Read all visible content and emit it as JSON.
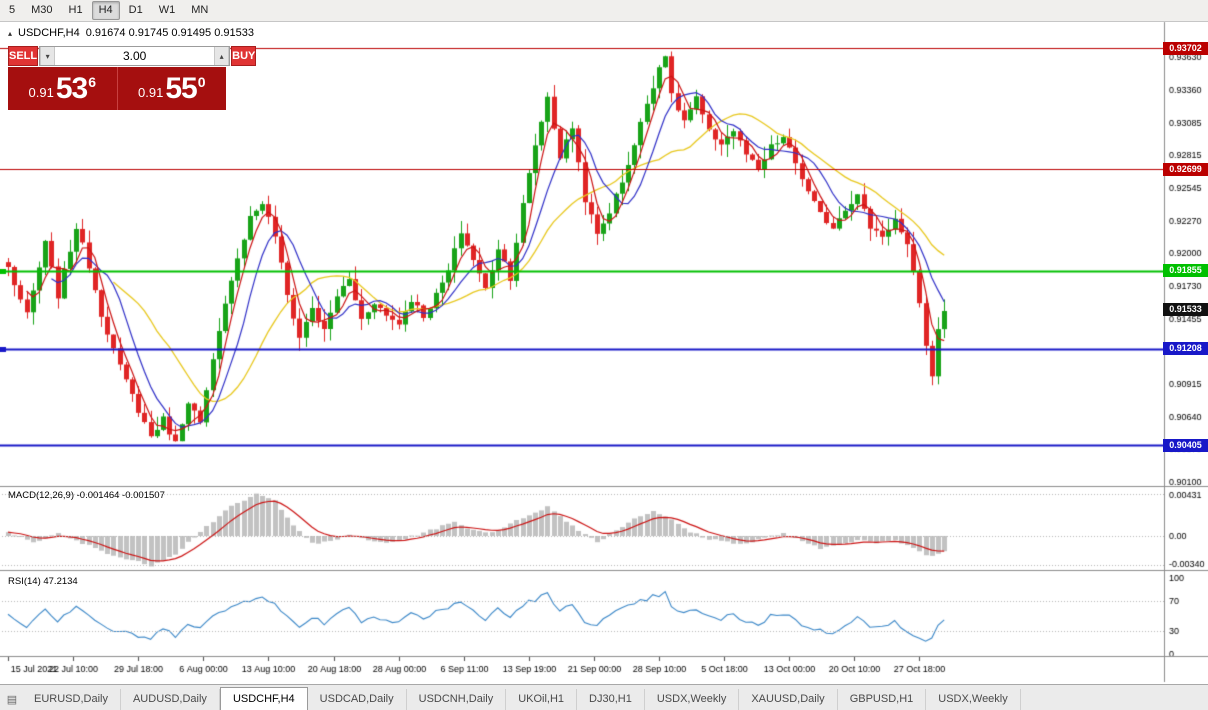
{
  "toolbar": {
    "timeframes": [
      "5",
      "M30",
      "H1",
      "H4",
      "D1",
      "W1",
      "MN"
    ],
    "active": "H4"
  },
  "chart_header": {
    "symbol": "USDCHF,H4",
    "ohlc": "0.91674 0.91745 0.91495 0.91533"
  },
  "trade_panel": {
    "sell_label": "SELL",
    "buy_label": "BUY",
    "volume": "3.00",
    "sell_price": {
      "prefix": "0.91",
      "big": "53",
      "sup": "6"
    },
    "buy_price": {
      "prefix": "0.91",
      "big": "55",
      "sup": "0"
    }
  },
  "indicators": {
    "macd": "MACD(12,26,9) -0.001464 -0.001507",
    "rsi": "RSI(14) 47.2134"
  },
  "icons": {
    "stepper_up": "▴",
    "stepper_down": "▾",
    "symbols_list": "▤",
    "header_marker": "▴"
  },
  "tabs": [
    "EURUSD,Daily",
    "AUDUSD,Daily",
    "USDCHF,H4",
    "USDCAD,Daily",
    "USDCNH,Daily",
    "UKOil,H1",
    "DJ30,H1",
    "USDX,Weekly",
    "XAUUSD,Daily",
    "GBPUSD,H1",
    "USDX,Weekly"
  ],
  "active_tab": "USDCHF,H4",
  "chart_data": {
    "type": "candlestick",
    "symbol": "USDCHF",
    "timeframe": "H4",
    "ylim": [
      0.90066,
      0.93888
    ],
    "price_axis_ticks": [
      "0.93630",
      "0.93360",
      "0.93085",
      "0.92815",
      "0.92545",
      "0.92270",
      "0.92000",
      "0.91730",
      "0.91455",
      "0.91185",
      "0.90915",
      "0.90640",
      "0.90370",
      "0.90100"
    ],
    "time_labels": [
      "15 Jul 2021",
      "22 Jul 10:00",
      "29 Jul 18:00",
      "6 Aug 00:00",
      "13 Aug 10:00",
      "20 Aug 18:00",
      "28 Aug 00:00",
      "6 Sep 11:00",
      "13 Sep 19:00",
      "21 Sep 00:00",
      "28 Sep 10:00",
      "5 Oct 18:00",
      "13 Oct 00:00",
      "20 Oct 10:00",
      "27 Oct 18:00"
    ],
    "horizontal_lines": [
      {
        "price": 0.93702,
        "label": "0.93702",
        "color": "#bb0000",
        "width": 1.2,
        "edge_marker": false
      },
      {
        "price": 0.92699,
        "label": "0.92699",
        "color": "#bb0000",
        "width": 1.2,
        "edge_marker": false
      },
      {
        "price": 0.91855,
        "label": "0.91855",
        "color": "#00c000",
        "width": 1.8,
        "edge_marker": true
      },
      {
        "price": 0.91208,
        "label": "0.91208",
        "color": "#1818c8",
        "width": 1.8,
        "edge_marker": true
      },
      {
        "price": 0.90405,
        "label": "0.90405",
        "color": "#1818c8",
        "width": 1.8,
        "edge_marker": false
      }
    ],
    "current_price": {
      "price": 0.91533,
      "label": "0.91533",
      "color": "#111111"
    },
    "candle_count": 152,
    "price_anchors": [
      [
        0,
        0.9188
      ],
      [
        3,
        0.9148
      ],
      [
        6,
        0.9208
      ],
      [
        8,
        0.9165
      ],
      [
        11,
        0.9222
      ],
      [
        13,
        0.919
      ],
      [
        15,
        0.915
      ],
      [
        18,
        0.9105
      ],
      [
        21,
        0.907
      ],
      [
        23,
        0.9048
      ],
      [
        25,
        0.9062
      ],
      [
        27,
        0.9042
      ],
      [
        29,
        0.9078
      ],
      [
        31,
        0.9058
      ],
      [
        33,
        0.911
      ],
      [
        36,
        0.918
      ],
      [
        39,
        0.923
      ],
      [
        41,
        0.9242
      ],
      [
        43,
        0.9215
      ],
      [
        45,
        0.9165
      ],
      [
        47,
        0.913
      ],
      [
        49,
        0.9155
      ],
      [
        51,
        0.9135
      ],
      [
        53,
        0.9165
      ],
      [
        55,
        0.9178
      ],
      [
        57,
        0.9145
      ],
      [
        59,
        0.916
      ],
      [
        61,
        0.9148
      ],
      [
        63,
        0.9142
      ],
      [
        65,
        0.9162
      ],
      [
        67,
        0.9148
      ],
      [
        69,
        0.9165
      ],
      [
        71,
        0.9185
      ],
      [
        73,
        0.9218
      ],
      [
        75,
        0.9195
      ],
      [
        77,
        0.917
      ],
      [
        79,
        0.9205
      ],
      [
        81,
        0.918
      ],
      [
        83,
        0.924
      ],
      [
        85,
        0.929
      ],
      [
        87,
        0.933
      ],
      [
        89,
        0.928
      ],
      [
        91,
        0.9305
      ],
      [
        93,
        0.9245
      ],
      [
        95,
        0.9215
      ],
      [
        97,
        0.9235
      ],
      [
        99,
        0.926
      ],
      [
        101,
        0.929
      ],
      [
        103,
        0.9325
      ],
      [
        105,
        0.9355
      ],
      [
        106,
        0.9366
      ],
      [
        107,
        0.933
      ],
      [
        109,
        0.931
      ],
      [
        111,
        0.9328
      ],
      [
        113,
        0.93
      ],
      [
        115,
        0.9292
      ],
      [
        117,
        0.9302
      ],
      [
        119,
        0.9282
      ],
      [
        121,
        0.9268
      ],
      [
        123,
        0.9288
      ],
      [
        125,
        0.9296
      ],
      [
        127,
        0.9275
      ],
      [
        129,
        0.925
      ],
      [
        131,
        0.9232
      ],
      [
        133,
        0.9222
      ],
      [
        135,
        0.9238
      ],
      [
        137,
        0.9248
      ],
      [
        139,
        0.9222
      ],
      [
        141,
        0.9215
      ],
      [
        143,
        0.9228
      ],
      [
        145,
        0.9205
      ],
      [
        147,
        0.916
      ],
      [
        148,
        0.9122
      ],
      [
        149,
        0.91
      ],
      [
        150,
        0.9135
      ],
      [
        151,
        0.9153
      ]
    ],
    "macd": {
      "axis": [
        "0.00431",
        "0.00",
        "-0.00340"
      ],
      "axis_values": [
        0.00431,
        0,
        -0.0034
      ],
      "anchors": [
        [
          0,
          0.0004
        ],
        [
          4,
          -0.0006
        ],
        [
          8,
          0.0002
        ],
        [
          13,
          -0.001
        ],
        [
          18,
          -0.0022
        ],
        [
          23,
          -0.003
        ],
        [
          27,
          -0.0018
        ],
        [
          31,
          0.0005
        ],
        [
          36,
          0.003
        ],
        [
          40,
          0.0043
        ],
        [
          43,
          0.0036
        ],
        [
          46,
          0.0012
        ],
        [
          49,
          -0.0008
        ],
        [
          52,
          -0.0006
        ],
        [
          55,
          0.0002
        ],
        [
          58,
          -0.0005
        ],
        [
          61,
          -0.0007
        ],
        [
          64,
          -0.0003
        ],
        [
          68,
          0.0006
        ],
        [
          72,
          0.0014
        ],
        [
          75,
          0.0006
        ],
        [
          78,
          0.0004
        ],
        [
          81,
          0.0012
        ],
        [
          84,
          0.0022
        ],
        [
          87,
          0.003
        ],
        [
          90,
          0.0015
        ],
        [
          93,
          0.0002
        ],
        [
          95,
          -0.0006
        ],
        [
          98,
          0.0006
        ],
        [
          101,
          0.0018
        ],
        [
          104,
          0.0026
        ],
        [
          107,
          0.0016
        ],
        [
          110,
          0.0004
        ],
        [
          113,
          -0.0003
        ],
        [
          116,
          -0.0006
        ],
        [
          119,
          -0.0008
        ],
        [
          122,
          -0.0002
        ],
        [
          125,
          0.0003
        ],
        [
          128,
          -0.0006
        ],
        [
          131,
          -0.0013
        ],
        [
          134,
          -0.0008
        ],
        [
          137,
          -0.0004
        ],
        [
          140,
          -0.0007
        ],
        [
          143,
          -0.0005
        ],
        [
          145,
          -0.0009
        ],
        [
          147,
          -0.0016
        ],
        [
          149,
          -0.0021
        ],
        [
          151,
          -0.0015
        ]
      ]
    },
    "rsi": {
      "axis": [
        "100",
        "70",
        "30",
        "0"
      ],
      "axis_values": [
        100,
        70,
        30,
        0
      ],
      "levels": [
        70,
        30
      ],
      "anchors": [
        [
          0,
          52
        ],
        [
          3,
          38
        ],
        [
          6,
          60
        ],
        [
          8,
          45
        ],
        [
          11,
          64
        ],
        [
          13,
          52
        ],
        [
          15,
          38
        ],
        [
          18,
          28
        ],
        [
          21,
          24
        ],
        [
          23,
          20
        ],
        [
          25,
          32
        ],
        [
          27,
          25
        ],
        [
          29,
          42
        ],
        [
          31,
          35
        ],
        [
          33,
          48
        ],
        [
          36,
          62
        ],
        [
          39,
          72
        ],
        [
          41,
          78
        ],
        [
          43,
          65
        ],
        [
          45,
          48
        ],
        [
          47,
          35
        ],
        [
          49,
          50
        ],
        [
          51,
          40
        ],
        [
          53,
          55
        ],
        [
          55,
          62
        ],
        [
          57,
          42
        ],
        [
          59,
          52
        ],
        [
          61,
          45
        ],
        [
          63,
          42
        ],
        [
          65,
          55
        ],
        [
          67,
          45
        ],
        [
          69,
          55
        ],
        [
          71,
          62
        ],
        [
          73,
          70
        ],
        [
          75,
          55
        ],
        [
          77,
          45
        ],
        [
          79,
          60
        ],
        [
          81,
          48
        ],
        [
          83,
          65
        ],
        [
          85,
          72
        ],
        [
          87,
          78
        ],
        [
          89,
          55
        ],
        [
          91,
          65
        ],
        [
          93,
          45
        ],
        [
          95,
          38
        ],
        [
          97,
          50
        ],
        [
          99,
          58
        ],
        [
          101,
          65
        ],
        [
          103,
          72
        ],
        [
          105,
          78
        ],
        [
          106,
          80
        ],
        [
          107,
          60
        ],
        [
          109,
          52
        ],
        [
          111,
          60
        ],
        [
          113,
          48
        ],
        [
          115,
          45
        ],
        [
          117,
          52
        ],
        [
          119,
          44
        ],
        [
          121,
          38
        ],
        [
          123,
          50
        ],
        [
          125,
          54
        ],
        [
          127,
          44
        ],
        [
          129,
          36
        ],
        [
          131,
          30
        ],
        [
          133,
          28
        ],
        [
          135,
          40
        ],
        [
          137,
          48
        ],
        [
          139,
          36
        ],
        [
          141,
          34
        ],
        [
          143,
          42
        ],
        [
          145,
          32
        ],
        [
          147,
          22
        ],
        [
          149,
          18
        ],
        [
          150,
          35
        ],
        [
          151,
          47
        ]
      ]
    },
    "colors": {
      "up": "#18a318",
      "down": "#e02525",
      "ma_fast": "#cc1414",
      "ma_mid": "#3030c8",
      "ma_slow": "#e8c81e",
      "macd_hist": "#c2c2c2",
      "macd_signal": "#cc1414",
      "rsi_line": "#3a87c8"
    }
  }
}
